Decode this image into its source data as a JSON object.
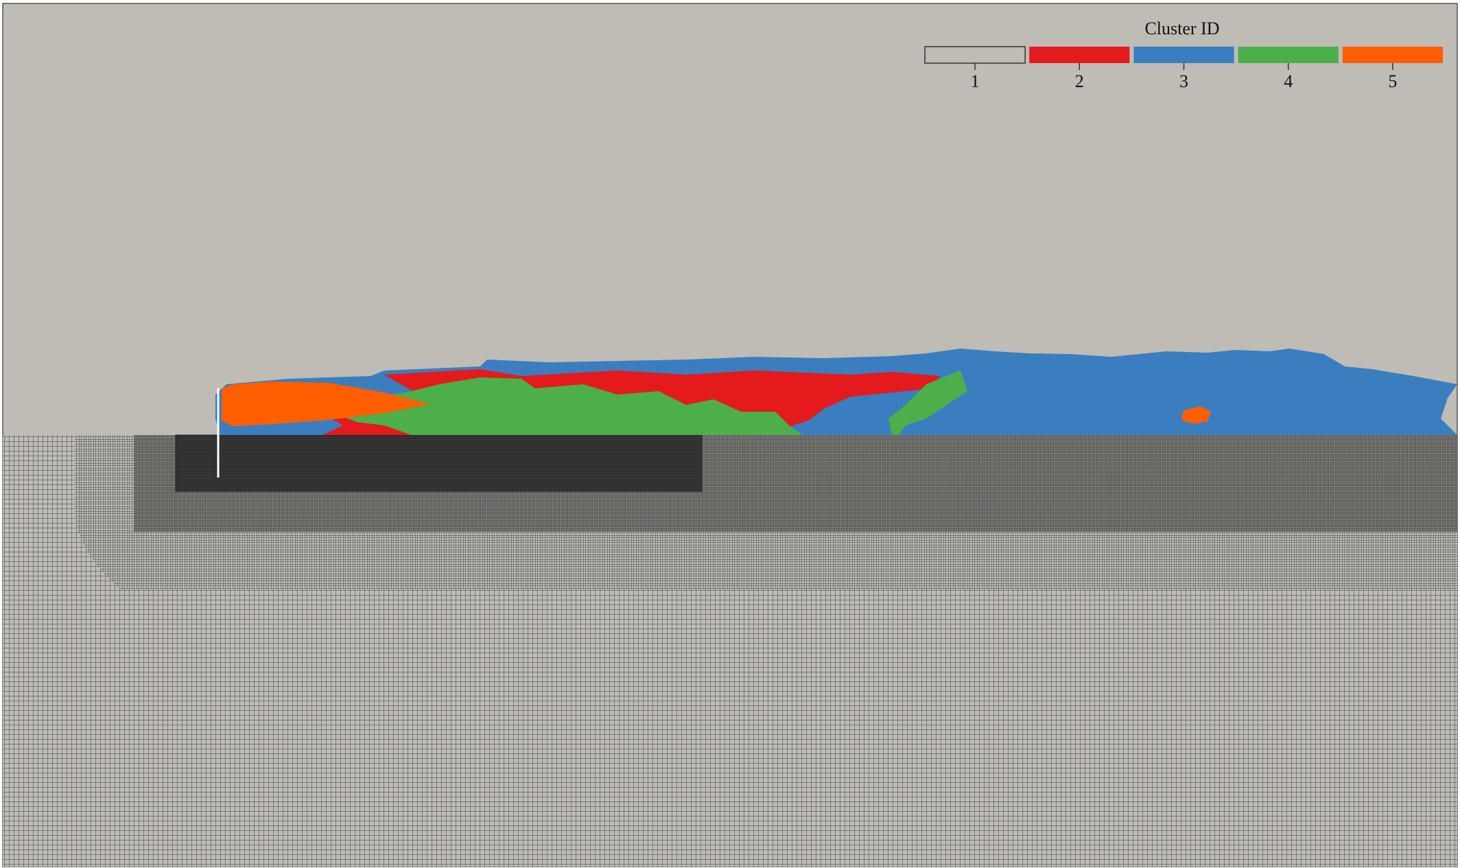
{
  "legend": {
    "title": "Cluster ID",
    "entries": [
      {
        "label": "1",
        "color": "#bebcb5"
      },
      {
        "label": "2",
        "color": "#e41a1c"
      },
      {
        "label": "3",
        "color": "#3a7ebf"
      },
      {
        "label": "4",
        "color": "#4daf4a"
      },
      {
        "label": "5",
        "color": "#ff5f00"
      }
    ]
  }
}
